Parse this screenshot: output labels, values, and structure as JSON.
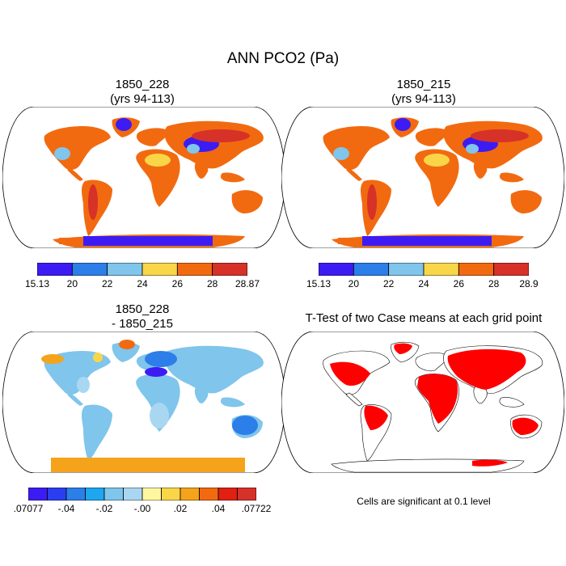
{
  "title": "ANN PCO2 (Pa)",
  "panels": {
    "top_left": {
      "title_line1": "1850_228",
      "title_line2": "(yrs 94-113)"
    },
    "top_right": {
      "title_line1": "1850_215",
      "title_line2": "(yrs 94-113)"
    },
    "bottom_left": {
      "title_line1": "1850_228",
      "title_line2": "- 1850_215"
    },
    "bottom_right": {
      "title_line1": "T-Test of two Case means at each grid point",
      "note": "Cells are significant at 0.1 level"
    }
  },
  "colorbars": {
    "top_left": {
      "colors": [
        "#3c1cf2",
        "#2c7ee8",
        "#7fc5ec",
        "#f8d648",
        "#f26a10",
        "#d63228"
      ],
      "labels": [
        "15.13",
        "20",
        "22",
        "24",
        "26",
        "28",
        "28.87"
      ]
    },
    "top_right": {
      "colors": [
        "#3c1cf2",
        "#2c7ee8",
        "#7fc5ec",
        "#f8d648",
        "#f26a10",
        "#d63228"
      ],
      "labels": [
        "15.13",
        "20",
        "22",
        "24",
        "26",
        "28",
        "28.9"
      ]
    },
    "diff": {
      "colors": [
        "#3c1cf2",
        "#2a3ef0",
        "#2c7ee8",
        "#1ea6ee",
        "#7fc5ec",
        "#a9d7f2",
        "#fff7a0",
        "#f8d648",
        "#f5a31a",
        "#f26a10",
        "#e02010",
        "#d63228"
      ],
      "labels": [
        ".07077",
        "-.04",
        "-.02",
        "-.00",
        ".02",
        ".04",
        ".07722"
      ]
    }
  },
  "icons": {
    "map": "world-map-icon"
  }
}
